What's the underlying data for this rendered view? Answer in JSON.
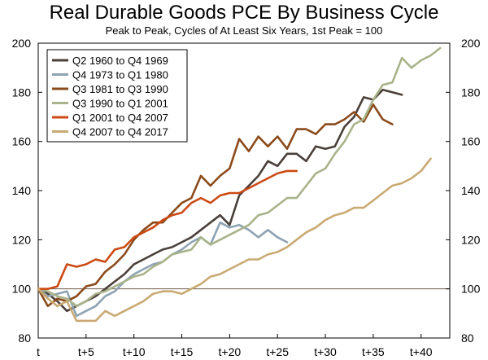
{
  "chart_data": {
    "type": "line",
    "title": "Real Durable Goods PCE By Business Cycle",
    "subtitle": "Peak to Peak, Cycles of At Least Six Years, 1st Peak = 100",
    "xlabel": "",
    "ylabel": "",
    "xlim": [
      0,
      43
    ],
    "ylim": [
      80,
      200
    ],
    "x_tick_values": [
      0,
      5,
      10,
      15,
      20,
      25,
      30,
      35,
      40
    ],
    "x_tick_labels": [
      "t",
      "t+5",
      "t+10",
      "t+15",
      "t+20",
      "t+25",
      "t+30",
      "t+35",
      "t+40"
    ],
    "y_ticks": [
      80,
      100,
      120,
      140,
      160,
      180,
      200
    ],
    "reference_line": 100,
    "grid": false,
    "legend_position": "top-left",
    "series": [
      {
        "name": "Q2 1960 to Q4 1969",
        "color": "#4a3f3a",
        "values": [
          100,
          98,
          95,
          91,
          93,
          95,
          97,
          100,
          103,
          106,
          110,
          112,
          114,
          116,
          117,
          119,
          121,
          124,
          127,
          130,
          126,
          138,
          142,
          146,
          152,
          150,
          155,
          155,
          152,
          158,
          157,
          158,
          166,
          170,
          178,
          177,
          181,
          180,
          179
        ]
      },
      {
        "name": "Q4 1973 to Q1 1980",
        "color": "#8ea3b3",
        "values": [
          100,
          97,
          98,
          99,
          89,
          91,
          93,
          97,
          99,
          103,
          106,
          108,
          110,
          111,
          114,
          116,
          119,
          121,
          118,
          127,
          125,
          126,
          124,
          121,
          124,
          121,
          119
        ]
      },
      {
        "name": "Q3 1981 to Q3 1990",
        "color": "#8b4a1a",
        "values": [
          100,
          93,
          96,
          95,
          97,
          101,
          102,
          107,
          110,
          114,
          120,
          124,
          127,
          127,
          131,
          135,
          137,
          146,
          142,
          146,
          149,
          161,
          156,
          162,
          158,
          162,
          157,
          165,
          165,
          163,
          167,
          167,
          169,
          172,
          168,
          175,
          169,
          167
        ]
      },
      {
        "name": "Q3 1990 to Q1 2001",
        "color": "#a9b38a",
        "values": [
          100,
          99,
          97,
          96,
          93,
          95,
          98,
          99,
          101,
          103,
          105,
          106,
          109,
          111,
          114,
          115,
          116,
          121,
          118,
          120,
          122,
          124,
          126,
          130,
          131,
          134,
          137,
          137,
          142,
          147,
          149,
          155,
          160,
          167,
          169,
          177,
          183,
          184,
          194,
          190,
          193,
          195,
          198
        ]
      },
      {
        "name": "Q1 2001 to Q4 2007",
        "color": "#cc4a14",
        "values": [
          100,
          100,
          101,
          110,
          109,
          110,
          112,
          111,
          116,
          117,
          121,
          123,
          125,
          128,
          130,
          131,
          135,
          137,
          135,
          138,
          139,
          139,
          141,
          143,
          145,
          147,
          148,
          148
        ]
      },
      {
        "name": "Q4 2007 to Q4 2017",
        "color": "#c9aa74",
        "values": [
          100,
          96,
          93,
          95,
          87,
          87,
          87,
          91,
          89,
          91,
          93,
          95,
          98,
          99,
          99,
          98,
          100,
          102,
          105,
          106,
          108,
          110,
          112,
          112,
          114,
          115,
          117,
          120,
          123,
          125,
          128,
          130,
          131,
          133,
          133,
          136,
          139,
          142,
          143,
          145,
          148,
          153
        ]
      }
    ]
  }
}
